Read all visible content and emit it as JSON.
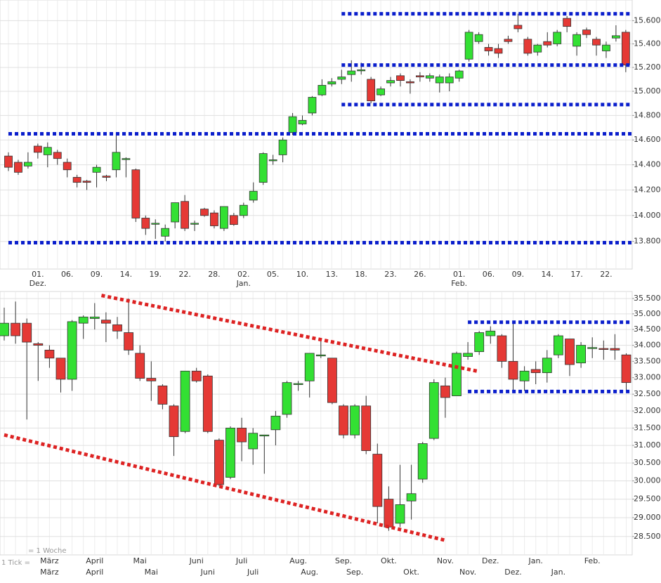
{
  "chart_data": [
    {
      "type": "candlestick",
      "log": true,
      "grid": true,
      "colors": {
        "up": "#33e033",
        "down": "#e53935",
        "edge": "#333333"
      },
      "categories": [
        null,
        null,
        null,
        "01.",
        null,
        null,
        "06.",
        null,
        null,
        "09.",
        null,
        null,
        "14.",
        null,
        null,
        "19.",
        null,
        null,
        "22.",
        null,
        null,
        "28.",
        null,
        null,
        "02.",
        null,
        null,
        "05.",
        null,
        null,
        "10.",
        null,
        null,
        "13.",
        null,
        null,
        "18.",
        null,
        null,
        "23.",
        null,
        null,
        "26.",
        null,
        null,
        null,
        "01.",
        null,
        null,
        "06.",
        null,
        null,
        "09.",
        null,
        null,
        "14.",
        null,
        null,
        "17.",
        null,
        null,
        "22.",
        null,
        null
      ],
      "month_labels": [
        null,
        null,
        null,
        "Dez.",
        null,
        null,
        null,
        null,
        null,
        null,
        null,
        null,
        null,
        null,
        null,
        null,
        null,
        null,
        null,
        null,
        null,
        null,
        null,
        null,
        "Jan.",
        null,
        null,
        null,
        null,
        null,
        null,
        null,
        null,
        null,
        null,
        null,
        null,
        null,
        null,
        null,
        null,
        null,
        null,
        null,
        null,
        null,
        "Feb.",
        null,
        null,
        null,
        null,
        null,
        null,
        null,
        null,
        null,
        null,
        null,
        null,
        null,
        null,
        null,
        null,
        null
      ],
      "open": [
        14.47,
        14.42,
        14.39,
        14.55,
        14.48,
        14.5,
        14.42,
        14.3,
        14.27,
        14.34,
        14.31,
        14.36,
        14.45,
        14.36,
        13.98,
        13.94,
        13.84,
        13.95,
        14.11,
        13.94,
        14.05,
        14.02,
        13.9,
        14.0,
        14.0,
        14.12,
        14.26,
        14.44,
        14.48,
        14.66,
        14.73,
        14.82,
        14.97,
        15.06,
        15.1,
        15.14,
        15.18,
        15.1,
        14.97,
        15.07,
        15.13,
        15.08,
        15.13,
        15.11,
        15.07,
        15.07,
        15.11,
        15.27,
        15.42,
        15.37,
        15.36,
        15.44,
        15.56,
        15.44,
        15.33,
        15.42,
        15.4,
        15.62,
        15.38,
        15.52,
        15.44,
        15.34,
        15.45,
        15.5
      ],
      "high": [
        14.5,
        14.44,
        14.5,
        14.57,
        14.58,
        14.52,
        14.45,
        14.32,
        14.28,
        14.4,
        14.32,
        14.66,
        14.46,
        14.37,
        14.0,
        13.97,
        13.93,
        14.1,
        14.16,
        13.96,
        14.06,
        14.04,
        14.07,
        14.02,
        14.1,
        14.26,
        14.5,
        14.48,
        14.62,
        14.82,
        14.8,
        14.96,
        15.1,
        15.11,
        15.18,
        15.26,
        15.24,
        15.12,
        15.04,
        15.12,
        15.15,
        15.1,
        15.16,
        15.15,
        15.14,
        15.15,
        15.18,
        15.52,
        15.5,
        15.4,
        15.4,
        15.47,
        15.66,
        15.46,
        15.4,
        15.5,
        15.52,
        15.64,
        15.5,
        15.54,
        15.46,
        15.42,
        15.56,
        15.52
      ],
      "low": [
        14.35,
        14.32,
        14.37,
        14.45,
        14.38,
        14.4,
        14.3,
        14.22,
        14.2,
        14.22,
        14.27,
        14.3,
        14.3,
        13.95,
        13.85,
        13.82,
        13.8,
        13.9,
        13.88,
        13.88,
        13.99,
        13.9,
        13.88,
        13.92,
        13.98,
        14.1,
        14.24,
        14.4,
        14.42,
        14.64,
        14.72,
        14.8,
        14.96,
        15.04,
        15.06,
        15.08,
        15.14,
        14.9,
        14.96,
        15.04,
        15.04,
        14.98,
        15.08,
        15.08,
        14.99,
        15.0,
        15.08,
        15.25,
        15.4,
        15.3,
        15.28,
        15.4,
        15.5,
        15.3,
        15.3,
        15.37,
        15.38,
        15.5,
        15.3,
        15.45,
        15.3,
        15.28,
        15.42,
        15.16
      ],
      "close": [
        14.38,
        14.34,
        14.42,
        14.5,
        14.54,
        14.45,
        14.36,
        14.26,
        14.26,
        14.38,
        14.3,
        14.5,
        14.45,
        13.98,
        13.9,
        13.94,
        13.9,
        14.1,
        13.9,
        13.94,
        14.0,
        13.92,
        14.07,
        13.93,
        14.08,
        14.19,
        14.49,
        14.44,
        14.6,
        14.79,
        14.76,
        14.95,
        15.05,
        15.08,
        15.12,
        15.17,
        15.18,
        14.92,
        15.02,
        15.09,
        15.09,
        15.07,
        15.12,
        15.13,
        15.12,
        15.12,
        15.17,
        15.5,
        15.48,
        15.34,
        15.32,
        15.42,
        15.53,
        15.32,
        15.39,
        15.39,
        15.5,
        15.55,
        15.48,
        15.48,
        15.39,
        15.39,
        15.47,
        15.22
      ],
      "ylim": [
        13.59,
        15.78
      ],
      "yticks": [
        {
          "value": 13.8,
          "label": "13.800"
        },
        {
          "value": 14.0,
          "label": "14.000"
        },
        {
          "value": 14.2,
          "label": "14.200"
        },
        {
          "value": 14.4,
          "label": "14.400"
        },
        {
          "value": 14.6,
          "label": "14.600"
        },
        {
          "value": 14.8,
          "label": "14.800"
        },
        {
          "value": 15.0,
          "label": "15.000"
        },
        {
          "value": 15.2,
          "label": "15.200"
        },
        {
          "value": 15.4,
          "label": "15.400"
        },
        {
          "value": 15.6,
          "label": "15.600"
        }
      ],
      "levels": [
        {
          "x": [
            34,
            63.6
          ],
          "y": [
            15.66,
            15.66
          ],
          "color": "#0a1ecc"
        },
        {
          "x": [
            34,
            63.6
          ],
          "y": [
            15.22,
            15.22
          ],
          "color": "#0a1ecc"
        },
        {
          "x": [
            34,
            63.6
          ],
          "y": [
            14.89,
            14.89
          ],
          "color": "#0a1ecc"
        },
        {
          "x": [
            0,
            63.6
          ],
          "y": [
            14.65,
            14.65
          ],
          "color": "#0a1ecc"
        },
        {
          "x": [
            0,
            63.6
          ],
          "y": [
            13.79,
            13.79
          ],
          "color": "#0a1ecc"
        }
      ]
    },
    {
      "type": "candlestick",
      "log": true,
      "grid": true,
      "colors": {
        "up": "#33e033",
        "down": "#e53935",
        "edge": "#333333"
      },
      "categories": [
        null,
        null,
        null,
        null,
        "März",
        null,
        null,
        null,
        "April",
        null,
        null,
        null,
        "Mai",
        null,
        null,
        null,
        null,
        "Juni",
        null,
        null,
        null,
        "Juli",
        null,
        null,
        null,
        null,
        "Aug.",
        null,
        null,
        null,
        "Sep.",
        null,
        null,
        null,
        "Okt.",
        null,
        null,
        null,
        null,
        "Nov.",
        null,
        null,
        null,
        "Dez.",
        null,
        null,
        null,
        "Jan.",
        null,
        null,
        null,
        null,
        "Feb.",
        null,
        null,
        null
      ],
      "month_labels": [
        null,
        null,
        null,
        null,
        "März",
        null,
        null,
        null,
        "April",
        null,
        null,
        null,
        null,
        "Mai",
        null,
        null,
        null,
        null,
        "Juni",
        null,
        null,
        null,
        "Juli",
        null,
        null,
        null,
        null,
        "Aug.",
        null,
        null,
        null,
        "Sep.",
        null,
        null,
        null,
        null,
        "Okt.",
        null,
        null,
        null,
        null,
        "Nov.",
        null,
        null,
        null,
        "Dez.",
        null,
        null,
        null,
        "Jan.",
        null,
        null,
        null,
        null,
        null,
        null
      ],
      "open": [
        34.3,
        34.7,
        34.7,
        34.05,
        33.85,
        33.6,
        32.95,
        34.7,
        34.85,
        34.8,
        34.65,
        34.4,
        33.75,
        32.98,
        32.75,
        32.15,
        31.4,
        33.2,
        33.05,
        31.15,
        30.1,
        31.5,
        30.9,
        31.3,
        31.45,
        31.9,
        32.8,
        32.9,
        33.7,
        33.6,
        32.15,
        31.3,
        32.15,
        30.75,
        29.5,
        28.85,
        29.45,
        30.05,
        31.2,
        32.75,
        32.45,
        33.65,
        33.8,
        34.3,
        34.3,
        33.5,
        32.9,
        33.25,
        33.15,
        33.7,
        34.2,
        33.45,
        33.93,
        33.9,
        33.9,
        33.7
      ],
      "high": [
        35.2,
        35.4,
        34.85,
        34.1,
        34.0,
        33.6,
        34.8,
        34.95,
        35.35,
        35.05,
        34.9,
        35.5,
        34.0,
        33.5,
        32.8,
        32.2,
        33.2,
        33.3,
        33.1,
        31.2,
        31.55,
        31.8,
        31.5,
        31.3,
        32.0,
        32.9,
        32.9,
        33.75,
        34.15,
        33.6,
        32.2,
        32.2,
        32.45,
        31.05,
        29.85,
        30.45,
        30.45,
        31.1,
        32.95,
        33.0,
        33.8,
        34.1,
        34.45,
        34.6,
        34.35,
        34.7,
        33.35,
        33.5,
        33.85,
        34.35,
        34.2,
        34.1,
        34.25,
        34.15,
        34.35,
        33.75
      ],
      "low": [
        34.15,
        34.05,
        31.75,
        32.9,
        33.3,
        32.55,
        32.6,
        34.2,
        34.5,
        34.1,
        34.2,
        33.7,
        32.9,
        32.3,
        32.05,
        30.7,
        31.35,
        32.85,
        31.35,
        29.85,
        30.05,
        30.55,
        30.45,
        30.2,
        31.0,
        31.8,
        32.6,
        32.4,
        33.6,
        32.2,
        31.2,
        31.2,
        30.75,
        28.85,
        28.65,
        28.75,
        28.95,
        29.95,
        31.15,
        31.8,
        32.45,
        33.55,
        33.7,
        34.05,
        33.3,
        32.55,
        32.6,
        32.8,
        32.85,
        33.6,
        33.05,
        33.3,
        33.6,
        33.55,
        33.55,
        32.6
      ],
      "close": [
        34.7,
        34.3,
        34.1,
        34.0,
        33.6,
        32.95,
        34.75,
        34.9,
        34.9,
        34.7,
        34.45,
        33.85,
        32.98,
        32.9,
        32.2,
        31.25,
        33.2,
        32.9,
        31.4,
        29.9,
        31.5,
        31.1,
        31.35,
        31.3,
        31.85,
        32.85,
        32.82,
        33.75,
        33.7,
        32.25,
        31.3,
        32.15,
        30.85,
        29.3,
        28.75,
        29.35,
        29.65,
        31.05,
        32.85,
        32.4,
        33.75,
        33.75,
        34.4,
        34.45,
        33.5,
        32.95,
        33.2,
        33.15,
        33.6,
        34.3,
        33.4,
        34.0,
        33.93,
        33.88,
        33.85,
        32.85
      ],
      "ylim": [
        28.02,
        35.73
      ],
      "yticks": [
        {
          "value": 28.5,
          "label": "28.500"
        },
        {
          "value": 29.0,
          "label": "29.000"
        },
        {
          "value": 29.5,
          "label": "29.500"
        },
        {
          "value": 30.0,
          "label": "30.000"
        },
        {
          "value": 30.5,
          "label": "30.500"
        },
        {
          "value": 31.0,
          "label": "31.000"
        },
        {
          "value": 31.5,
          "label": "31.500"
        },
        {
          "value": 32.0,
          "label": "32.000"
        },
        {
          "value": 32.5,
          "label": "32.500"
        },
        {
          "value": 33.0,
          "label": "33.000"
        },
        {
          "value": 33.5,
          "label": "33.500"
        },
        {
          "value": 34.0,
          "label": "34.000"
        },
        {
          "value": 34.5,
          "label": "34.500"
        },
        {
          "value": 35.0,
          "label": "35.000"
        },
        {
          "value": 35.5,
          "label": "35.500"
        }
      ],
      "levels": [
        {
          "x": [
            8.6,
            41.8
          ],
          "y": [
            35.6,
            33.2
          ],
          "color": "#dd2222"
        },
        {
          "x": [
            0,
            39
          ],
          "y": [
            31.3,
            28.4
          ],
          "color": "#dd2222"
        },
        {
          "x": [
            41,
            55.3
          ],
          "y": [
            34.73,
            34.73
          ],
          "color": "#0a1ecc"
        },
        {
          "x": [
            41,
            55.3
          ],
          "y": [
            32.58,
            32.58
          ],
          "color": "#0a1ecc"
        }
      ],
      "note": "= 1 Woche",
      "tick_note": "1 Tick ="
    }
  ]
}
